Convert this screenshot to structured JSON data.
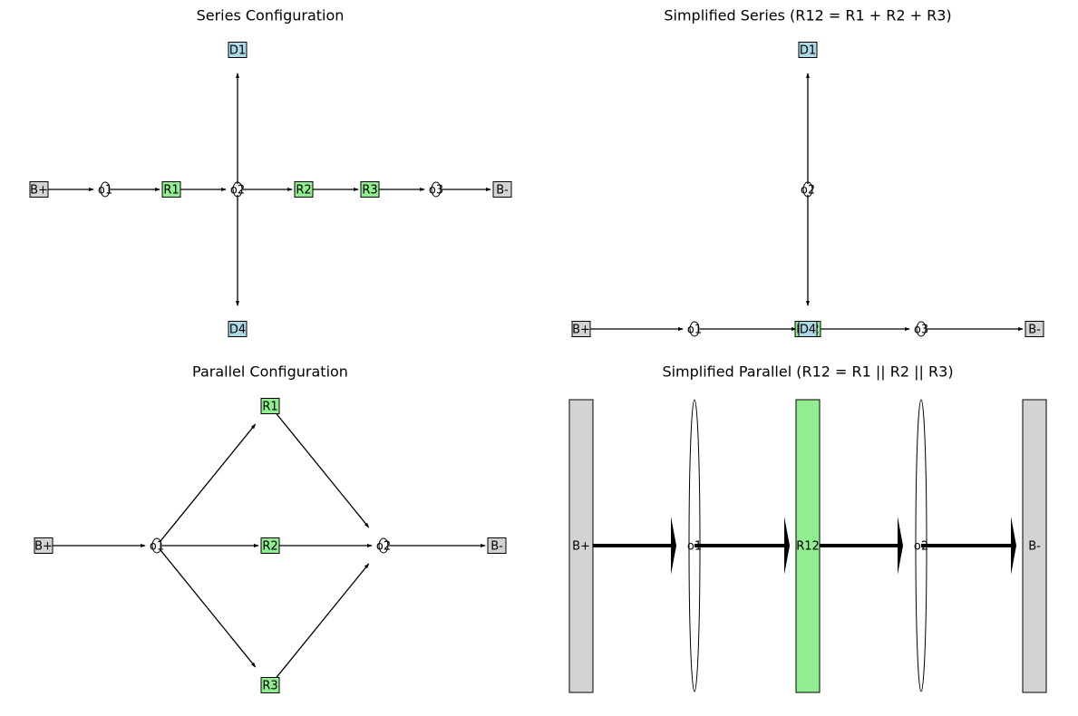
{
  "panels": [
    {
      "title": "Series Configuration",
      "nodes": [
        "B+",
        "o1",
        "R1",
        "o2",
        "R2",
        "R3",
        "o3",
        "B-",
        "D1",
        "D4"
      ]
    },
    {
      "title": "Simplified Series (R12 = R1 + R2 + R3)",
      "nodes": [
        "D1",
        "o2",
        "B+",
        "o1",
        "R12",
        "D4",
        "o3",
        "B-"
      ]
    },
    {
      "title": "Parallel Configuration",
      "nodes": [
        "B+",
        "o1",
        "R1",
        "R2",
        "R3",
        "o2",
        "B-"
      ]
    },
    {
      "title": "Simplified Parallel (R12 = R1 || R2 || R3)",
      "nodes": [
        "B+",
        "o1",
        "R12",
        "o2",
        "B-"
      ]
    }
  ]
}
